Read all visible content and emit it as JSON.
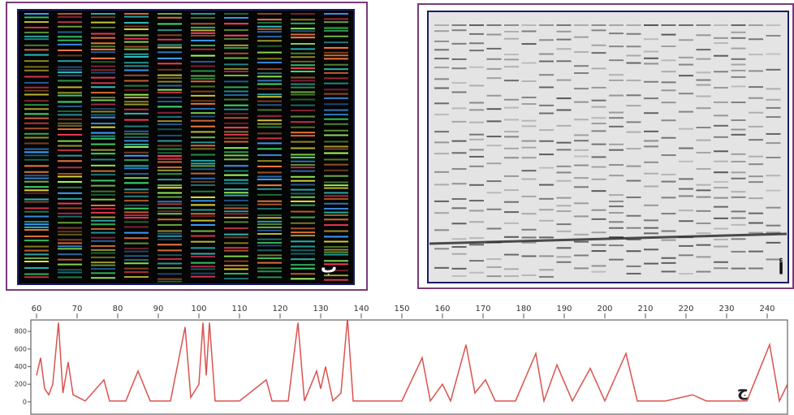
{
  "panels": [
    {
      "label": "ب"
    },
    {
      "label": "أ"
    }
  ],
  "chart_data": {
    "type": "line",
    "annotation": "ج",
    "color": "#d9534f",
    "x": [
      60,
      61,
      62,
      63,
      64,
      65.4,
      66.5,
      67.8,
      69,
      72,
      76.6,
      78,
      82,
      85,
      88,
      93,
      96.6,
      98,
      100,
      101,
      101.8,
      102.6,
      104,
      110,
      116.6,
      118,
      122,
      124.4,
      126,
      129,
      130,
      131.2,
      133,
      135,
      136.6,
      138,
      145,
      150,
      155,
      157,
      160,
      162,
      165.8,
      168,
      170.6,
      173,
      178,
      183,
      185,
      188.2,
      192,
      196.4,
      200,
      205.2,
      208,
      215,
      221.6,
      225,
      235,
      240.6,
      243,
      245
    ],
    "values": [
      300,
      500,
      150,
      80,
      200,
      900,
      100,
      450,
      80,
      10,
      250,
      10,
      10,
      350,
      10,
      10,
      850,
      50,
      200,
      900,
      300,
      900,
      10,
      10,
      250,
      10,
      10,
      900,
      10,
      350,
      150,
      400,
      10,
      100,
      950,
      10,
      10,
      10,
      500,
      10,
      200,
      10,
      650,
      100,
      250,
      10,
      10,
      550,
      10,
      420,
      10,
      380,
      10,
      550,
      10,
      10,
      80,
      10,
      10,
      650,
      10,
      200
    ],
    "xlim": [
      58.6,
      245
    ],
    "ylim": [
      -140,
      930
    ],
    "xticks": [
      60,
      70,
      80,
      90,
      100,
      110,
      120,
      130,
      140,
      150,
      160,
      170,
      180,
      190,
      200,
      210,
      220,
      230,
      240
    ],
    "yticks": [
      0,
      200,
      400,
      600,
      800
    ]
  }
}
